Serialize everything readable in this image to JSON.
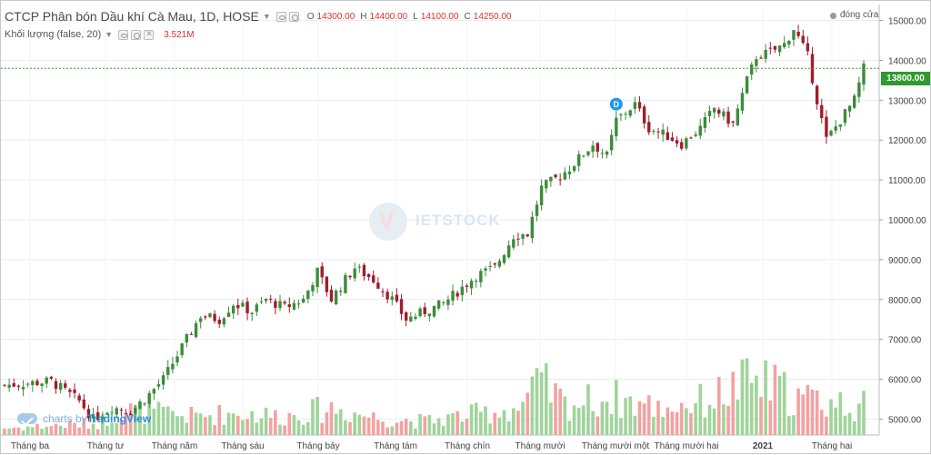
{
  "legend": {
    "title": "CTCP Phân bón Dầu khí Cà Mau, 1D, HOSE",
    "ohlc": [
      {
        "k": "O",
        "v": "14300.00"
      },
      {
        "k": "H",
        "v": "14400.00"
      },
      {
        "k": "L",
        "v": "14100.00"
      },
      {
        "k": "C",
        "v": "14250.00"
      }
    ],
    "volume_title": "Khối lượng (false, 20)",
    "volume_value": "3.521M"
  },
  "status": {
    "text": "đóng cửa"
  },
  "current_price_label": "13800.00",
  "event_marker": "D",
  "watermark": "IETSTOCK",
  "branding": {
    "prefix": "charts by ",
    "brand": "TradingView"
  },
  "colors": {
    "up": "#26a69a",
    "down": "#ef5350",
    "up_candle": "#3c8c3c",
    "down_candle": "#a01e2c",
    "vol_up": "#9fd49a",
    "vol_down": "#f4a1a1",
    "price_line": "#2e9b2e",
    "grid": "#ececec",
    "marker": "#2196f3"
  },
  "chart_data": {
    "type": "candlestick",
    "x_labels": [
      "Tháng ba",
      "Tháng tư",
      "Tháng năm",
      "Tháng sáu",
      "Tháng bảy",
      "Tháng tám",
      "Tháng chín",
      "Tháng mười",
      "Tháng mười một",
      "Tháng mười hai",
      "2021",
      "Tháng hai"
    ],
    "y_ticks": [
      5000,
      6000,
      7000,
      8000,
      9000,
      10000,
      11000,
      12000,
      13000,
      14000,
      15000
    ],
    "ylim": [
      4600,
      15400
    ],
    "current_price": 13800,
    "close_path": [
      [
        0,
        5850
      ],
      [
        10,
        5950
      ],
      [
        13,
        5700
      ],
      [
        16,
        5450
      ],
      [
        19,
        5000
      ],
      [
        23,
        5300
      ],
      [
        27,
        5200
      ],
      [
        30,
        5500
      ],
      [
        34,
        6000
      ],
      [
        38,
        6800
      ],
      [
        42,
        7600
      ],
      [
        46,
        7500
      ],
      [
        49,
        7900
      ],
      [
        53,
        7700
      ],
      [
        56,
        8000
      ],
      [
        60,
        7800
      ],
      [
        64,
        8000
      ],
      [
        67,
        8700
      ],
      [
        70,
        8000
      ],
      [
        73,
        8500
      ],
      [
        75,
        8800
      ],
      [
        79,
        8500
      ],
      [
        83,
        8000
      ],
      [
        86,
        7500
      ],
      [
        90,
        7700
      ],
      [
        94,
        7900
      ],
      [
        98,
        8300
      ],
      [
        101,
        8600
      ],
      [
        105,
        8800
      ],
      [
        109,
        9600
      ],
      [
        112,
        9650
      ],
      [
        115,
        10800
      ],
      [
        119,
        11100
      ],
      [
        121,
        11300
      ],
      [
        126,
        11900
      ],
      [
        129,
        11600
      ],
      [
        131,
        12500
      ],
      [
        135,
        12900
      ],
      [
        138,
        12300
      ],
      [
        142,
        12100
      ],
      [
        145,
        11900
      ],
      [
        149,
        12300
      ],
      [
        152,
        12800
      ],
      [
        156,
        12400
      ],
      [
        159,
        13500
      ],
      [
        161,
        14100
      ],
      [
        164,
        14200
      ],
      [
        167,
        14400
      ],
      [
        169,
        14800
      ],
      [
        172,
        14100
      ],
      [
        174,
        13000
      ],
      [
        176,
        12000
      ],
      [
        179,
        12500
      ],
      [
        182,
        13000
      ],
      [
        184,
        13800
      ]
    ],
    "volume_ylim": [
      0,
      8000000
    ],
    "volume_path": [
      [
        0,
        400000
      ],
      [
        20,
        700000
      ],
      [
        25,
        1500000
      ],
      [
        40,
        1100000
      ],
      [
        50,
        1300000
      ],
      [
        60,
        1100000
      ],
      [
        70,
        1600000
      ],
      [
        80,
        1000000
      ],
      [
        90,
        800000
      ],
      [
        100,
        1200000
      ],
      [
        110,
        1600000
      ],
      [
        115,
        3000000
      ],
      [
        120,
        1800000
      ],
      [
        130,
        2200000
      ],
      [
        140,
        1600000
      ],
      [
        150,
        2000000
      ],
      [
        160,
        3200000
      ],
      [
        165,
        2800000
      ],
      [
        170,
        2200000
      ],
      [
        175,
        2000000
      ],
      [
        184,
        1700000
      ]
    ]
  }
}
